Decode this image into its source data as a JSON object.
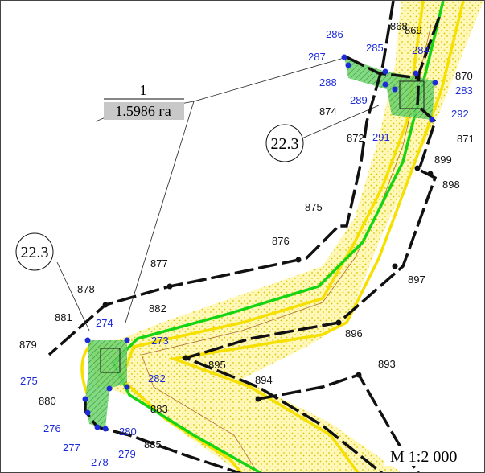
{
  "parcel": {
    "number": "1",
    "area": "1.5986 га"
  },
  "circle_labels": [
    "22.3",
    "22.3"
  ],
  "scale": "М 1:2 000",
  "colors": {
    "road_fill": "#fff8b8",
    "yellow_line": "#f5e000",
    "green_line": "#14d414",
    "boundary": "#111111",
    "hatch_fill": "#6cd46c",
    "blue_point": "#1d2bd8",
    "thin_line": "#b06a30"
  },
  "black_points": [
    "868",
    "869",
    "870",
    "871",
    "872",
    "874",
    "875",
    "876",
    "877",
    "878",
    "879",
    "880",
    "881",
    "882",
    "883",
    "885",
    "893",
    "894",
    "895",
    "896",
    "897",
    "898",
    "899"
  ],
  "blue_points": [
    "273",
    "274",
    "275",
    "276",
    "277",
    "278",
    "279",
    "280",
    "282",
    "283",
    "284",
    "285",
    "286",
    "287",
    "288",
    "289",
    "291",
    "292"
  ]
}
